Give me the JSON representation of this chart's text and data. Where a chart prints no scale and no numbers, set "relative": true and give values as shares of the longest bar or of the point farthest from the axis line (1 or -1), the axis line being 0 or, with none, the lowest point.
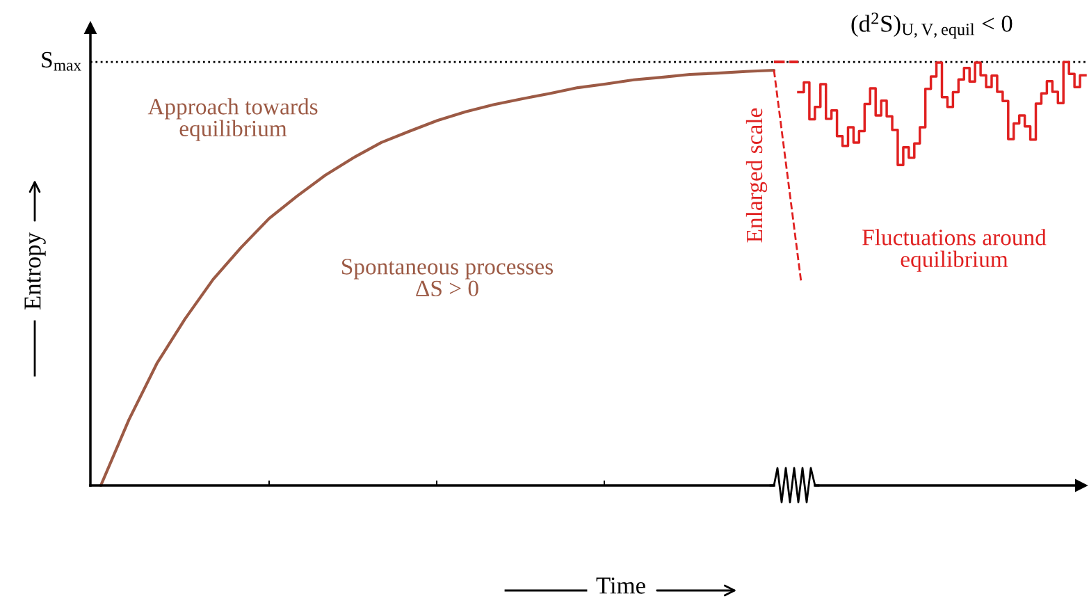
{
  "chart_data": [
    {
      "type": "line",
      "relative": true,
      "xlabel": "Time",
      "ylabel": "Entropy",
      "categories": [
        null,
        null,
        null,
        null,
        null,
        null,
        null,
        null,
        null,
        null,
        null,
        null,
        null,
        null,
        null,
        null,
        null,
        null,
        null,
        null,
        null,
        null,
        null,
        null,
        null
      ],
      "series": [
        {
          "color": "#9c5a45",
          "values": [
            0,
            0.158,
            0.294,
            0.401,
            0.496,
            0.573,
            0.643,
            0.697,
            0.747,
            0.789,
            0.826,
            0.853,
            0.879,
            0.9,
            0.917,
            0.931,
            0.944,
            0.958,
            0.967,
            0.977,
            0.983,
            0.99,
            0.993,
            0.997,
            1
          ]
        }
      ],
      "ref_lines": [
        {
          "axis": "y",
          "value": 1.02,
          "label": "S$_{max}$",
          "color": "#000000",
          "line_style": "dotted"
        }
      ],
      "annotations": [
        "Approach towards\nequilibrium",
        "Spontaneous processes\nΔS > 0"
      ]
    },
    {
      "type": "step",
      "relative": true,
      "categories": [
        null,
        null,
        null,
        null,
        null,
        null,
        null,
        null,
        null,
        null,
        null,
        null,
        null,
        null,
        null,
        null,
        null,
        null,
        null,
        null,
        null,
        null,
        null,
        null,
        null,
        null,
        null,
        null,
        null,
        null,
        null,
        null,
        null,
        null,
        null,
        null,
        null,
        null,
        null,
        null,
        null,
        null,
        null,
        null,
        null,
        null,
        null,
        null,
        null,
        null,
        null,
        null,
        null
      ],
      "series": [
        {
          "color": "#e02020",
          "values": [
            0.929,
            0.952,
            0.865,
            0.894,
            0.948,
            0.866,
            0.886,
            0.825,
            0.802,
            0.846,
            0.81,
            0.837,
            0.901,
            0.938,
            0.874,
            0.909,
            0.872,
            0.84,
            0.757,
            0.799,
            0.774,
            0.808,
            0.846,
            0.937,
            0.966,
            0.999,
            0.917,
            0.894,
            0.929,
            0.959,
            0.986,
            0.954,
            0.999,
            0.969,
            0.941,
            0.968,
            0.93,
            0.908,
            0.818,
            0.855,
            0.874,
            0.848,
            0.817,
            0.902,
            0.926,
            0.955,
            0.93,
            0.903,
            1,
            0.972,
            0.941,
            0.969,
            0.969
          ]
        }
      ],
      "annotations": [
        "Enlarged scale",
        "Fluctuations around\nequilibrium",
        "(d$^{2}$S)$_{U,V,equil}$ < 0"
      ]
    }
  ]
}
